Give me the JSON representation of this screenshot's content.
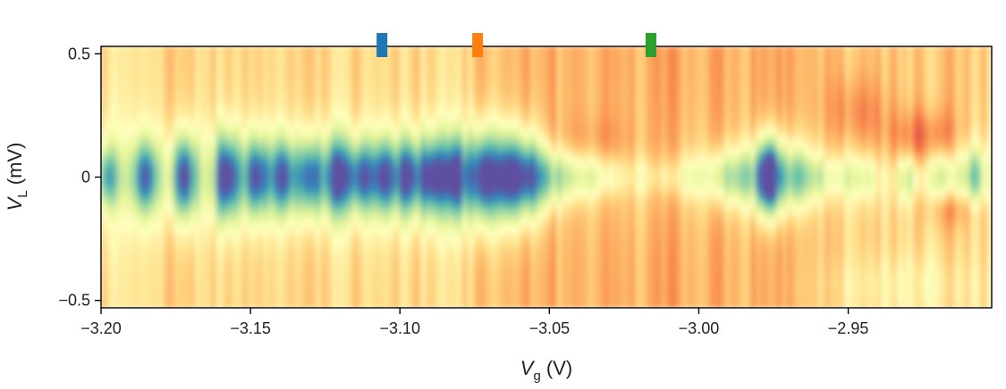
{
  "chart_data": {
    "type": "heatmap",
    "title": "",
    "xlabel": "V",
    "xlabel_sub": "g",
    "xlabel_unit": " (V)",
    "ylabel": "V",
    "ylabel_sub": "L",
    "ylabel_unit": " (mV)",
    "xlim": [
      -3.2,
      -2.902
    ],
    "ylim": [
      -0.53,
      0.53
    ],
    "xticks": [
      -3.2,
      -3.15,
      -3.1,
      -3.05,
      -3.0,
      -2.95
    ],
    "xtick_labels": [
      "−3.20",
      "−3.15",
      "−3.10",
      "−3.05",
      "−3.00",
      "−2.95"
    ],
    "yticks": [
      0.5,
      0,
      -0.5
    ],
    "ytick_labels": [
      "0.5",
      "0",
      "−0.5"
    ],
    "colormap": [
      "#5e4fa2",
      "#3288bd",
      "#66c2a5",
      "#abdda4",
      "#e6f598",
      "#ffffbf",
      "#fee08b",
      "#fdae61",
      "#f46d43",
      "#d53e4f",
      "#9e0142"
    ],
    "markers": [
      {
        "x": -3.106,
        "color": "#1f77b4"
      },
      {
        "x": -3.074,
        "color": "#ff7f0e"
      },
      {
        "x": -3.016,
        "color": "#2ca02c"
      }
    ],
    "zero_bias_peaks": [
      {
        "x": -3.198,
        "strength": 0.55
      },
      {
        "x": -3.185,
        "strength": 0.75
      },
      {
        "x": -3.172,
        "strength": 0.9
      },
      {
        "x": -3.158,
        "strength": 0.95
      },
      {
        "x": -3.148,
        "strength": 0.85
      },
      {
        "x": -3.139,
        "strength": 0.8
      },
      {
        "x": -3.13,
        "strength": 0.8
      },
      {
        "x": -3.121,
        "strength": 0.85
      },
      {
        "x": -3.113,
        "strength": 0.75
      },
      {
        "x": -3.105,
        "strength": 0.8
      },
      {
        "x": -3.097,
        "strength": 0.8
      },
      {
        "x": -3.089,
        "strength": 0.85
      },
      {
        "x": -3.081,
        "strength": 0.9
      },
      {
        "x": -3.072,
        "strength": 1.0
      },
      {
        "x": -3.064,
        "strength": 0.95
      },
      {
        "x": -3.057,
        "strength": 0.85
      },
      {
        "x": -3.05,
        "strength": 0.55
      },
      {
        "x": -3.043,
        "strength": 0.4
      },
      {
        "x": -3.036,
        "strength": 0.3
      },
      {
        "x": -3.029,
        "strength": 0.25
      },
      {
        "x": -3.019,
        "strength": 0.2
      },
      {
        "x": -3.01,
        "strength": 0.2
      },
      {
        "x": -3.002,
        "strength": 0.3
      },
      {
        "x": -2.993,
        "strength": 0.45
      },
      {
        "x": -2.986,
        "strength": 0.5
      },
      {
        "x": -2.978,
        "strength": 0.75
      },
      {
        "x": -2.975,
        "strength": 0.8
      },
      {
        "x": -2.967,
        "strength": 0.6
      },
      {
        "x": -2.96,
        "strength": 0.35
      },
      {
        "x": -2.952,
        "strength": 0.25
      },
      {
        "x": -2.944,
        "strength": 0.3
      },
      {
        "x": -2.93,
        "strength": 0.35
      },
      {
        "x": -2.918,
        "strength": 0.45
      },
      {
        "x": -2.908,
        "strength": 0.55
      }
    ]
  }
}
